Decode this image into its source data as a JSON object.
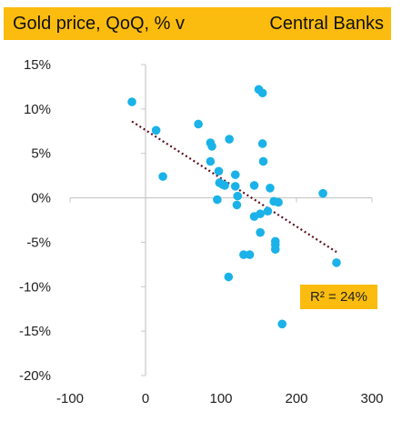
{
  "chart_data": {
    "type": "scatter",
    "title_left": "Gold price, QoQ, % v",
    "title_right": "Central Banks",
    "xlim": [
      -100,
      300
    ],
    "ylim": [
      -20,
      15
    ],
    "x_ticks": [
      -100,
      0,
      100,
      200,
      300
    ],
    "y_ticks": [
      15,
      10,
      5,
      0,
      -5,
      -10,
      -15,
      -20
    ],
    "y_tick_labels": [
      "15%",
      "10%",
      "5%",
      "0%",
      "-5%",
      "-10%",
      "-15%",
      "-20%"
    ],
    "grid": false,
    "point_color": "#1ab2e8",
    "trend_color": "#5a0f1e",
    "accent_color": "#fbbc0f",
    "points": [
      {
        "x": -18,
        "y": 10.8
      },
      {
        "x": 14,
        "y": 7.6
      },
      {
        "x": 23,
        "y": 2.4
      },
      {
        "x": 70,
        "y": 8.3
      },
      {
        "x": 86,
        "y": 6.2
      },
      {
        "x": 88,
        "y": 5.8
      },
      {
        "x": 86,
        "y": 4.1
      },
      {
        "x": 97,
        "y": 3.0
      },
      {
        "x": 95,
        "y": -0.2
      },
      {
        "x": 98,
        "y": 1.7
      },
      {
        "x": 102,
        "y": 1.5
      },
      {
        "x": 105,
        "y": 1.4
      },
      {
        "x": 111,
        "y": 6.6
      },
      {
        "x": 110,
        "y": -8.9
      },
      {
        "x": 119,
        "y": 2.6
      },
      {
        "x": 119,
        "y": 1.3
      },
      {
        "x": 122,
        "y": 0.2
      },
      {
        "x": 121,
        "y": -0.8
      },
      {
        "x": 130,
        "y": -6.4
      },
      {
        "x": 138,
        "y": -6.4
      },
      {
        "x": 144,
        "y": 1.4
      },
      {
        "x": 144,
        "y": -2.1
      },
      {
        "x": 150,
        "y": 12.2
      },
      {
        "x": 155,
        "y": 11.8
      },
      {
        "x": 155,
        "y": 6.1
      },
      {
        "x": 156,
        "y": 4.1
      },
      {
        "x": 152,
        "y": -1.8
      },
      {
        "x": 152,
        "y": -3.9
      },
      {
        "x": 162,
        "y": -1.5
      },
      {
        "x": 165,
        "y": 1.1
      },
      {
        "x": 170,
        "y": -0.4
      },
      {
        "x": 172,
        "y": -4.9
      },
      {
        "x": 172,
        "y": -5.3
      },
      {
        "x": 172,
        "y": -5.8
      },
      {
        "x": 176,
        "y": -0.5
      },
      {
        "x": 181,
        "y": -14.2
      },
      {
        "x": 235,
        "y": 0.5
      },
      {
        "x": 253,
        "y": -7.3
      }
    ],
    "trendline": {
      "x": [
        -18,
        253
      ],
      "y": [
        8.6,
        -6.1
      ]
    },
    "annotation": "R² = 24%"
  }
}
